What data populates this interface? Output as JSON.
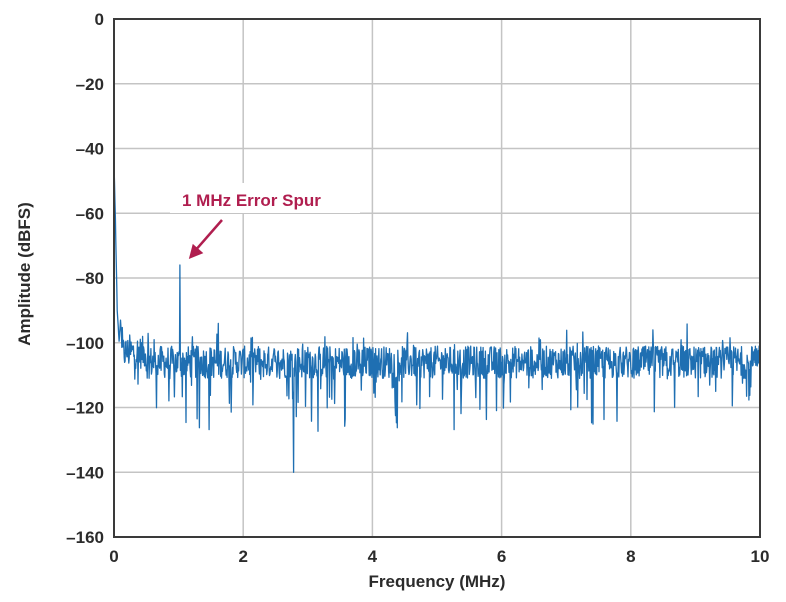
{
  "chart_data": {
    "type": "line",
    "title": "",
    "xlabel": "Frequency (MHz)",
    "ylabel": "Amplitude (dBFS)",
    "xlim": [
      0,
      10
    ],
    "ylim": [
      -160,
      0
    ],
    "x_ticks": [
      0,
      2,
      4,
      6,
      8,
      10
    ],
    "y_ticks": [
      0,
      -20,
      -40,
      -60,
      -80,
      -100,
      -120,
      -140,
      -160
    ],
    "x_tick_labels": [
      "0",
      "2",
      "4",
      "6",
      "8",
      "10"
    ],
    "y_tick_labels": [
      "0",
      "–20",
      "–40",
      "–60",
      "–80",
      "–100",
      "–120",
      "–140",
      "–160"
    ],
    "grid": true,
    "series": [
      {
        "color": "#1f6fb2",
        "noise_floor_dbfs": -106,
        "x": [
          0.0,
          0.02,
          0.05,
          0.08,
          0.1,
          0.13,
          0.2,
          0.3,
          0.45,
          0.6,
          0.8,
          0.95,
          1.0,
          1.02,
          1.05,
          1.08,
          1.2,
          1.5,
          2.0,
          2.5,
          2.78,
          3.0,
          3.5,
          4.0,
          4.5,
          5.0,
          5.5,
          6.0,
          6.5,
          7.0,
          7.5,
          8.0,
          8.5,
          9.0,
          9.5,
          10.0
        ],
        "y": [
          -45,
          -60,
          -90,
          -100,
          -93,
          -101,
          -103,
          -104,
          -106,
          -105,
          -104,
          -103,
          -104,
          -76,
          -100,
          -104,
          -106,
          -105,
          -104,
          -104,
          -140,
          -104,
          -106,
          -107,
          -108,
          -106,
          -107,
          -106,
          -105,
          -107,
          -106,
          -105,
          -106,
          -106,
          -106,
          -104
        ]
      }
    ],
    "annotations": [
      {
        "text": "1 MHz Error Spur",
        "x": 1.05,
        "y": -76,
        "color": "#b01e4f"
      }
    ]
  }
}
